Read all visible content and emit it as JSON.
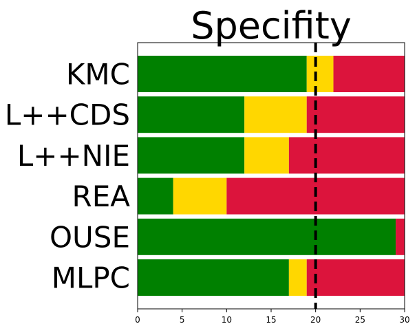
{
  "chart_data": {
    "type": "bar",
    "orientation": "horizontal",
    "stacked": true,
    "title": "Specifity",
    "xlabel": "",
    "ylabel": "",
    "xlim": [
      0,
      30
    ],
    "x_ticks": [
      "0",
      "5",
      "10",
      "15",
      "20",
      "25",
      "30"
    ],
    "categories": [
      "KMC",
      "L++CDS",
      "L++NIE",
      "REA",
      "OUSE",
      "MLPC"
    ],
    "series": [
      {
        "color": "#008000",
        "values": [
          19,
          12,
          12,
          4,
          29,
          17
        ]
      },
      {
        "color": "#FFD700",
        "values": [
          3,
          7,
          5,
          6,
          0,
          2
        ]
      },
      {
        "color": "#DC143C",
        "values": [
          8,
          11,
          13,
          20,
          1,
          11
        ]
      }
    ],
    "reference_line": {
      "x": 20,
      "style": "dashed",
      "color": "#000000"
    },
    "grid": false,
    "legend": "none"
  }
}
